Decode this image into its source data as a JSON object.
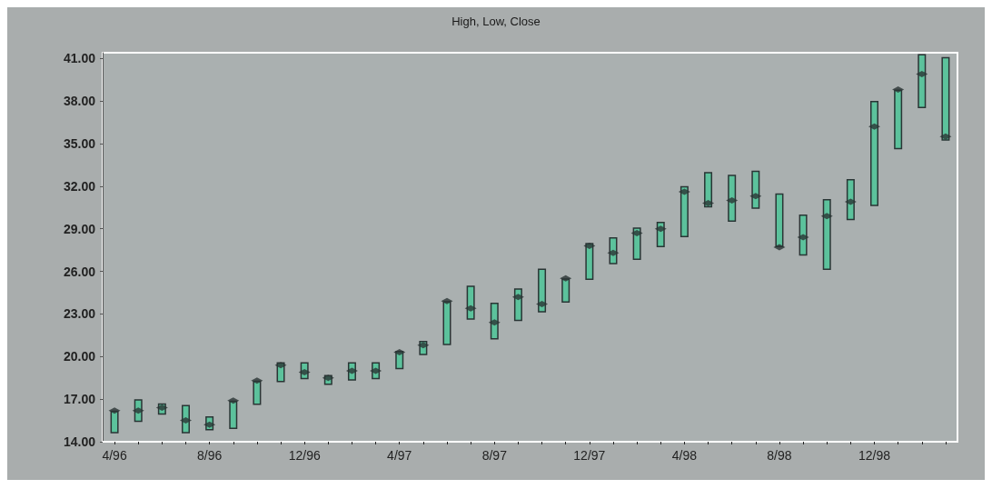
{
  "chart_data": {
    "type": "bar",
    "title": "High, Low, Close",
    "categories": [
      "4/96",
      null,
      null,
      null,
      "8/96",
      null,
      null,
      null,
      "12/96",
      null,
      null,
      null,
      "4/97",
      null,
      null,
      null,
      "8/97",
      null,
      null,
      null,
      "12/97",
      null,
      null,
      null,
      "4/98",
      null,
      null,
      null,
      "8/98",
      null,
      null,
      null,
      "12/98",
      null,
      null,
      null
    ],
    "series": [
      {
        "color": "#5cc29c",
        "base": [
          14.6,
          15.4,
          15.9,
          14.6,
          14.8,
          14.9,
          16.6,
          18.2,
          18.4,
          18.0,
          18.3,
          18.4,
          19.1,
          20.1,
          20.8,
          22.6,
          21.2,
          22.5,
          23.1,
          23.8,
          25.4,
          26.5,
          26.8,
          27.7,
          28.4,
          30.5,
          29.5,
          30.4,
          27.7,
          27.1,
          26.1,
          29.6,
          30.6,
          34.6,
          37.5,
          35.2
        ],
        "values": [
          1.6,
          1.6,
          0.8,
          2.0,
          1.0,
          2.0,
          1.7,
          1.4,
          1.2,
          0.7,
          1.3,
          1.2,
          1.3,
          1.0,
          3.1,
          2.4,
          2.6,
          2.3,
          3.1,
          1.7,
          2.6,
          1.9,
          2.3,
          1.8,
          3.6,
          2.5,
          3.3,
          2.7,
          3.8,
          2.9,
          5.0,
          2.9,
          7.4,
          4.2,
          3.8,
          5.9
        ]
      },
      {
        "type": "scatter",
        "color": "#2a3535",
        "marker": "diamond",
        "values": [
          16.2,
          16.2,
          16.4,
          15.5,
          15.2,
          16.9,
          18.3,
          19.4,
          18.9,
          18.5,
          19.0,
          19.0,
          20.3,
          20.8,
          23.9,
          23.4,
          22.4,
          24.2,
          23.7,
          25.5,
          27.8,
          27.3,
          28.7,
          29.0,
          31.6,
          30.8,
          31.0,
          31.3,
          27.7,
          28.4,
          29.9,
          30.9,
          36.2,
          38.8,
          39.9,
          35.5
        ]
      }
    ],
    "ylim": [
      14,
      41.4
    ],
    "yticks": [
      {
        "value": 14,
        "label": "14.00"
      },
      {
        "value": 17,
        "label": "17.00"
      },
      {
        "value": 20,
        "label": "20.00"
      },
      {
        "value": 23,
        "label": "23.00"
      },
      {
        "value": 26,
        "label": "26.00"
      },
      {
        "value": 29,
        "label": "29.00"
      },
      {
        "value": 32,
        "label": "32.00"
      },
      {
        "value": 35,
        "label": "35.00"
      },
      {
        "value": 38,
        "label": "38.00"
      },
      {
        "value": 41,
        "label": "41.00"
      }
    ]
  }
}
